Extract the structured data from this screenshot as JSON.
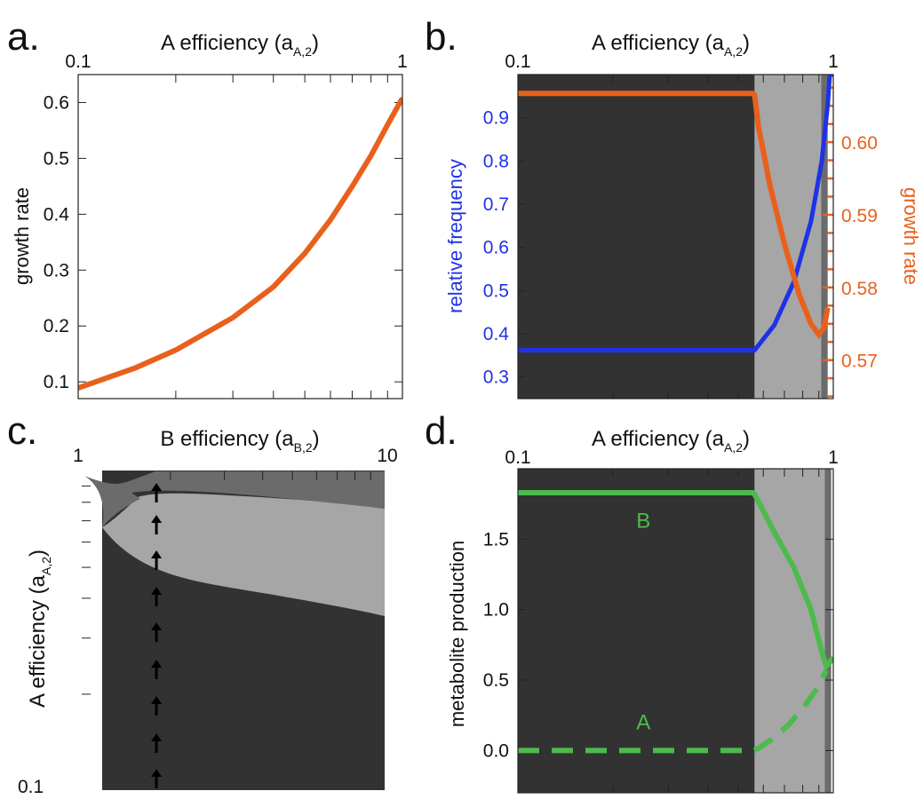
{
  "panel_labels": [
    "a.",
    "b.",
    "c.",
    "d."
  ],
  "colors": {
    "orange": "#e8601c",
    "blue": "#1f32e6",
    "green": "#4cbb4c",
    "dark": "#323232",
    "mid": "#6b6b6b",
    "light": "#a6a6a6"
  },
  "chart_data": [
    {
      "id": "a",
      "type": "line",
      "xlabel": "A efficiency (a",
      "xlabel_sub": "A,2",
      "xlabel_end": ")",
      "ylabel": "growth rate",
      "x_scale": "log",
      "xlim": [
        0.1,
        1
      ],
      "ylim": [
        0.07,
        0.65
      ],
      "x_ticklabels": [
        "0.1",
        "1"
      ],
      "y_ticks": [
        0.1,
        0.2,
        0.3,
        0.4,
        0.5,
        0.6
      ],
      "y_ticklabels": [
        "0.1",
        "0.2",
        "0.3",
        "0.4",
        "0.5",
        "0.6"
      ],
      "series": [
        {
          "x": [
            0.1,
            0.15,
            0.2,
            0.3,
            0.4,
            0.5,
            0.6,
            0.7,
            0.8,
            0.9,
            1.0
          ],
          "y": [
            0.089,
            0.125,
            0.157,
            0.215,
            0.27,
            0.33,
            0.39,
            0.45,
            0.505,
            0.56,
            0.608
          ]
        }
      ]
    },
    {
      "id": "b",
      "type": "line",
      "xlabel": "A efficiency (a",
      "xlabel_sub": "A,2",
      "xlabel_end": ")",
      "ylabel": "relative frequency",
      "ylabel2": "growth rate",
      "x_scale": "log",
      "xlim": [
        0.1,
        1
      ],
      "ylim": [
        0.25,
        1.0
      ],
      "y2lim": [
        0.5647,
        0.6093
      ],
      "x_ticklabels": [
        "0.1",
        "1"
      ],
      "y_ticks": [
        0.3,
        0.4,
        0.5,
        0.6,
        0.7,
        0.8,
        0.9
      ],
      "y_ticklabels": [
        "0.3",
        "0.4",
        "0.5",
        "0.6",
        "0.7",
        "0.8",
        "0.9"
      ],
      "y2_ticks": [
        0.57,
        0.58,
        0.59,
        0.6
      ],
      "y2_ticklabels": [
        "0.57",
        "0.58",
        "0.59",
        "0.60"
      ],
      "regions": [
        {
          "from": 0.1,
          "to": 0.563,
          "shade": "dark"
        },
        {
          "from": 0.563,
          "to": 0.915,
          "shade": "light"
        },
        {
          "from": 0.915,
          "to": 0.96,
          "shade": "mid"
        }
      ],
      "series": [
        {
          "name": "relative frequency",
          "axis": "left",
          "x": [
            0.1,
            0.563,
            0.65,
            0.75,
            0.85,
            0.92,
            0.96,
            0.975,
            1.0
          ],
          "y": [
            0.362,
            0.362,
            0.42,
            0.52,
            0.66,
            0.8,
            0.93,
            1.0,
            1.0
          ]
        },
        {
          "name": "growth rate",
          "axis": "right",
          "x": [
            0.1,
            0.555,
            0.563,
            0.58,
            0.63,
            0.7,
            0.78,
            0.85,
            0.9,
            0.935,
            0.96
          ],
          "y": [
            0.6067,
            0.6067,
            0.6065,
            0.602,
            0.594,
            0.586,
            0.579,
            0.575,
            0.5735,
            0.5745,
            0.5772
          ]
        }
      ]
    },
    {
      "id": "c",
      "type": "heatmap",
      "xlabel": "B efficiency (a",
      "xlabel_sub": "B,2",
      "xlabel_end": ")",
      "ylabel": "A efficiency (a",
      "ylabel_sub": "A,2",
      "ylabel_end": ")",
      "x_scale": "log",
      "y_scale": "log",
      "xlim": [
        1,
        10
      ],
      "ylim": [
        0.1,
        1
      ],
      "x_ticklabels": [
        "1",
        "10"
      ],
      "y_ticklabels": [
        "0.1"
      ],
      "marker_x": 1.8,
      "regions": [
        {
          "shade": "dark",
          "desc": "lower region"
        },
        {
          "shade": "light",
          "desc": "middle band"
        },
        {
          "shade": "mid",
          "desc": "upper band"
        }
      ]
    },
    {
      "id": "d",
      "type": "line",
      "xlabel": "A efficiency (a",
      "xlabel_sub": "A,2",
      "xlabel_end": ")",
      "ylabel": "metabolite production",
      "x_scale": "log",
      "xlim": [
        0.1,
        1
      ],
      "ylim": [
        -0.3,
        2.0
      ],
      "x_ticklabels": [
        "0.1",
        "1"
      ],
      "y_ticks": [
        0.0,
        0.5,
        1.0,
        1.5
      ],
      "y_ticklabels": [
        "0.0",
        "0.5",
        "1.0",
        "1.5"
      ],
      "regions": [
        {
          "from": 0.1,
          "to": 0.563,
          "shade": "dark"
        },
        {
          "from": 0.563,
          "to": 0.94,
          "shade": "light"
        },
        {
          "from": 0.94,
          "to": 0.985,
          "shade": "mid"
        }
      ],
      "series": [
        {
          "name": "B",
          "style": "solid",
          "x": [
            0.1,
            0.555,
            0.563,
            0.65,
            0.75,
            0.85,
            0.92,
            0.95,
            0.97,
            1.0
          ],
          "y": [
            1.83,
            1.83,
            1.82,
            1.55,
            1.3,
            1.0,
            0.7,
            0.6,
            0.62,
            0.66
          ]
        },
        {
          "name": "A",
          "style": "dashed",
          "x": [
            0.1,
            0.563,
            0.63,
            0.72,
            0.82,
            0.9,
            0.95
          ],
          "y": [
            0.0,
            0.0,
            0.07,
            0.18,
            0.33,
            0.46,
            0.57
          ]
        }
      ],
      "annotations": [
        {
          "text": "B",
          "x": 0.25,
          "y": 1.58
        },
        {
          "text": "A",
          "x": 0.25,
          "y": 0.15
        }
      ]
    }
  ]
}
